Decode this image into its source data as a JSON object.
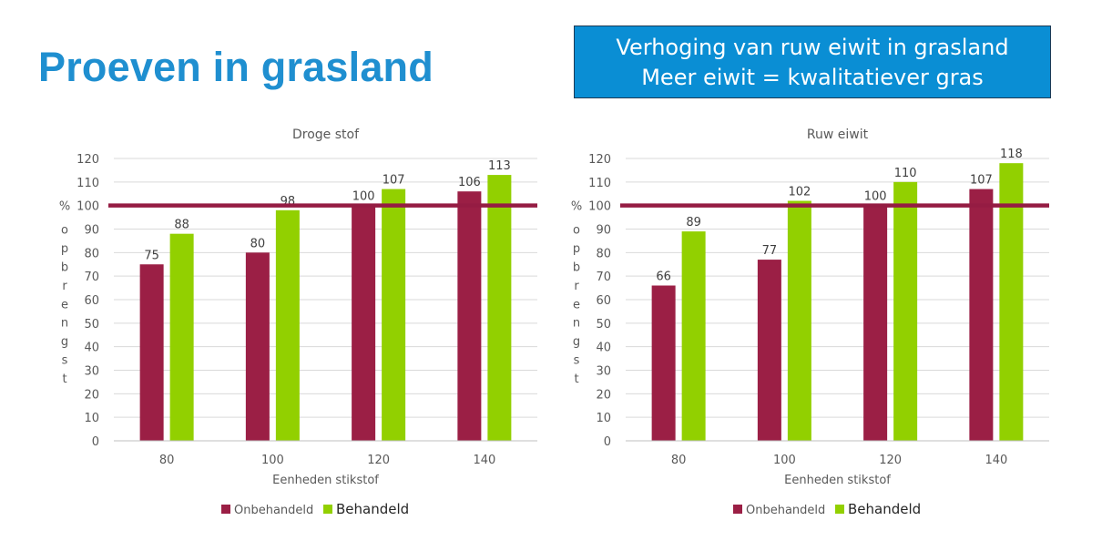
{
  "title": "Proeven in grasland",
  "callout": {
    "line1": "Verhoging van ruw eiwit in grasland",
    "line2": "Meer eiwit =  kwalitatiever gras"
  },
  "colors": {
    "title": "#1f8fd0",
    "callout_bg": "#0a8ed4",
    "untreated": "#9b1f45",
    "treated": "#92d000",
    "reference_line": "#951c43"
  },
  "chart_data": [
    {
      "type": "bar",
      "title": "Droge stof",
      "categories": [
        "80",
        "100",
        "120",
        "140"
      ],
      "series": [
        {
          "name": "Onbehandeld",
          "values": [
            75,
            80,
            100,
            106
          ],
          "color": "#9b1f45"
        },
        {
          "name": "Behandeld",
          "values": [
            88,
            98,
            107,
            113
          ],
          "color": "#92d000"
        }
      ],
      "xlabel": "Eenheden stikstof",
      "ylabel": "% opbrengst",
      "ylim": [
        0,
        120
      ],
      "yticks": [
        0,
        10,
        20,
        30,
        40,
        50,
        60,
        70,
        80,
        90,
        100,
        110,
        120
      ],
      "reference_line": 100,
      "grid": true,
      "legend": "bottom"
    },
    {
      "type": "bar",
      "title": "Ruw eiwit",
      "categories": [
        "80",
        "100",
        "120",
        "140"
      ],
      "series": [
        {
          "name": "Onbehandeld",
          "values": [
            66,
            77,
            100,
            107
          ],
          "color": "#9b1f45"
        },
        {
          "name": "Behandeld",
          "values": [
            89,
            102,
            110,
            118
          ],
          "color": "#92d000"
        }
      ],
      "xlabel": "Eenheden stikstof",
      "ylabel": "% opbrengst",
      "ylim": [
        0,
        120
      ],
      "yticks": [
        0,
        10,
        20,
        30,
        40,
        50,
        60,
        70,
        80,
        90,
        100,
        110,
        120
      ],
      "reference_line": 100,
      "grid": true,
      "legend": "bottom"
    }
  ]
}
